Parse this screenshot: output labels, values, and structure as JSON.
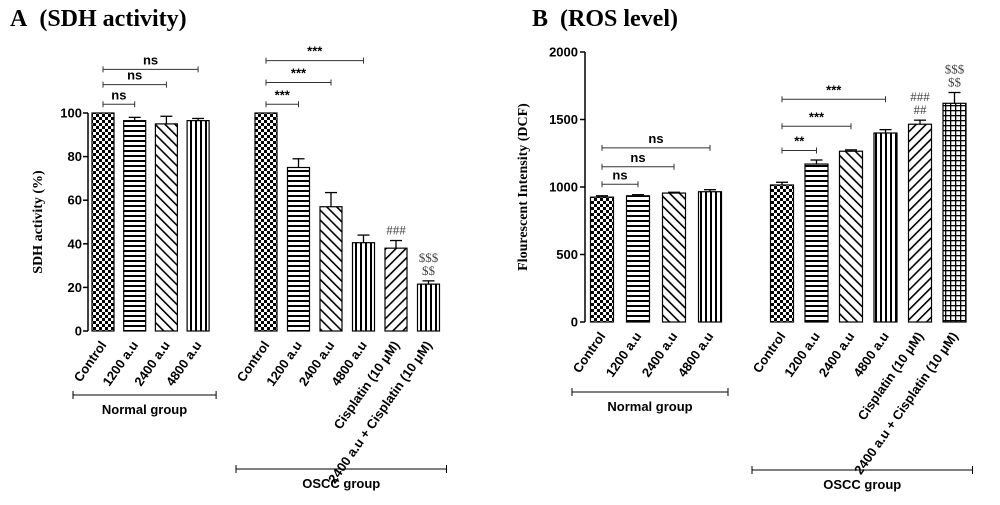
{
  "chart_data": [
    {
      "panel": "A",
      "title": "(SDH activity)",
      "type": "bar",
      "ylabel": "SDH activity (%)",
      "ylim": [
        0,
        100
      ],
      "yticks": [
        0,
        20,
        40,
        60,
        80,
        100
      ],
      "groups": [
        {
          "name": "Normal group",
          "categories": [
            "Control",
            "1200 a.u",
            "2400 a.u",
            "4800 a.u"
          ],
          "values": [
            100,
            96.5,
            95,
            96.5
          ],
          "errors": [
            0,
            1.5,
            3.5,
            1
          ],
          "patterns": [
            "checker",
            "hstripe",
            "diag-back",
            "vstripe"
          ]
        },
        {
          "name": "OSCC group",
          "categories": [
            "Control",
            "1200 a.u",
            "2400 a.u",
            "4800 a.u",
            "Cisplatin (10 μM)",
            "2400 a.u + Cisplatin (10 μM)"
          ],
          "values": [
            100,
            75,
            57,
            40.5,
            38,
            21.5
          ],
          "errors": [
            0,
            4,
            6.5,
            3.5,
            3.5,
            1.5
          ],
          "patterns": [
            "checker",
            "hstripe",
            "diag-back",
            "vstripe",
            "diag-fwd",
            "vstripe"
          ]
        }
      ],
      "brackets": [
        {
          "group": 0,
          "from": 0,
          "to": 1,
          "label": "ns",
          "y": 104
        },
        {
          "group": 0,
          "from": 0,
          "to": 2,
          "label": "ns",
          "y": 113
        },
        {
          "group": 0,
          "from": 0,
          "to": 3,
          "label": "ns",
          "y": 120
        },
        {
          "group": 1,
          "from": 0,
          "to": 1,
          "label": "***",
          "y": 104
        },
        {
          "group": 1,
          "from": 0,
          "to": 2,
          "label": "***",
          "y": 114
        },
        {
          "group": 1,
          "from": 0,
          "to": 3,
          "label": "***",
          "y": 124
        }
      ],
      "annotations": [
        {
          "group": 1,
          "bar": 4,
          "lines": [
            "###"
          ]
        },
        {
          "group": 1,
          "bar": 5,
          "lines": [
            "$$$",
            "$$"
          ]
        }
      ]
    },
    {
      "panel": "B",
      "title": "(ROS level)",
      "type": "bar",
      "ylabel": "Flourescent Intensity (DCF)",
      "ylim": [
        0,
        2000
      ],
      "yticks": [
        0,
        500,
        1000,
        1500,
        2000
      ],
      "groups": [
        {
          "name": "Normal group",
          "categories": [
            "Control",
            "1200 a.u",
            "2400 a.u",
            "4800 a.u"
          ],
          "values": [
            925,
            935,
            955,
            965
          ],
          "errors": [
            10,
            8,
            6,
            15
          ],
          "patterns": [
            "checker",
            "hstripe",
            "diag-back",
            "vstripe"
          ]
        },
        {
          "name": "OSCC group",
          "categories": [
            "Control",
            "1200 a.u",
            "2400 a.u",
            "4800 a.u",
            "Cisplatin (10 μM)",
            "2400 a.u + Cisplatin (10 μM)"
          ],
          "values": [
            1015,
            1170,
            1265,
            1400,
            1465,
            1620
          ],
          "errors": [
            20,
            30,
            10,
            25,
            30,
            80
          ],
          "patterns": [
            "checker",
            "hstripe",
            "diag-back",
            "vstripe",
            "diag-fwd",
            "grid"
          ]
        }
      ],
      "brackets": [
        {
          "group": 0,
          "from": 0,
          "to": 1,
          "label": "ns",
          "y": 1020
        },
        {
          "group": 0,
          "from": 0,
          "to": 2,
          "label": "ns",
          "y": 1150
        },
        {
          "group": 0,
          "from": 0,
          "to": 3,
          "label": "ns",
          "y": 1290
        },
        {
          "group": 1,
          "from": 0,
          "to": 1,
          "label": "**",
          "y": 1270
        },
        {
          "group": 1,
          "from": 0,
          "to": 2,
          "label": "***",
          "y": 1450
        },
        {
          "group": 1,
          "from": 0,
          "to": 3,
          "label": "***",
          "y": 1650
        }
      ],
      "annotations": [
        {
          "group": 1,
          "bar": 4,
          "lines": [
            "###",
            "##"
          ]
        },
        {
          "group": 1,
          "bar": 5,
          "lines": [
            "$$$",
            "$$"
          ]
        }
      ]
    }
  ]
}
